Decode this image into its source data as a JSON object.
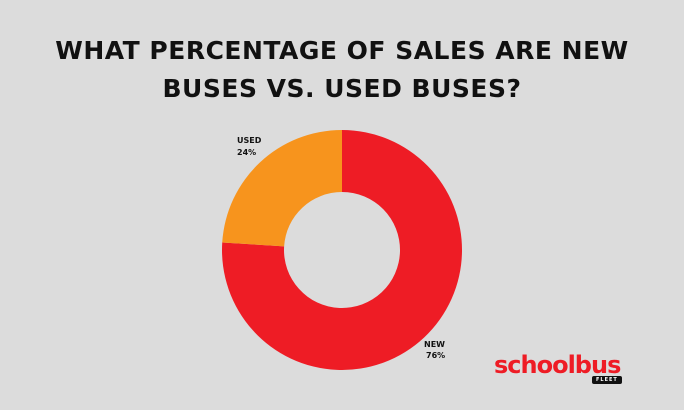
{
  "chart_data": {
    "type": "pie",
    "title": [
      "WHAT PERCENTAGE OF SALES ARE NEW",
      "BUSES VS. USED BUSES?"
    ],
    "categories": [
      "NEW",
      "USED"
    ],
    "values": [
      76,
      24
    ],
    "data_labels": [
      "76%",
      "24%"
    ],
    "colors": [
      "#ee1c25",
      "#f7941d"
    ],
    "donut": true,
    "legend": "none"
  },
  "logo": {
    "text_red": "schoolbus",
    "subtext": "FLEET"
  }
}
